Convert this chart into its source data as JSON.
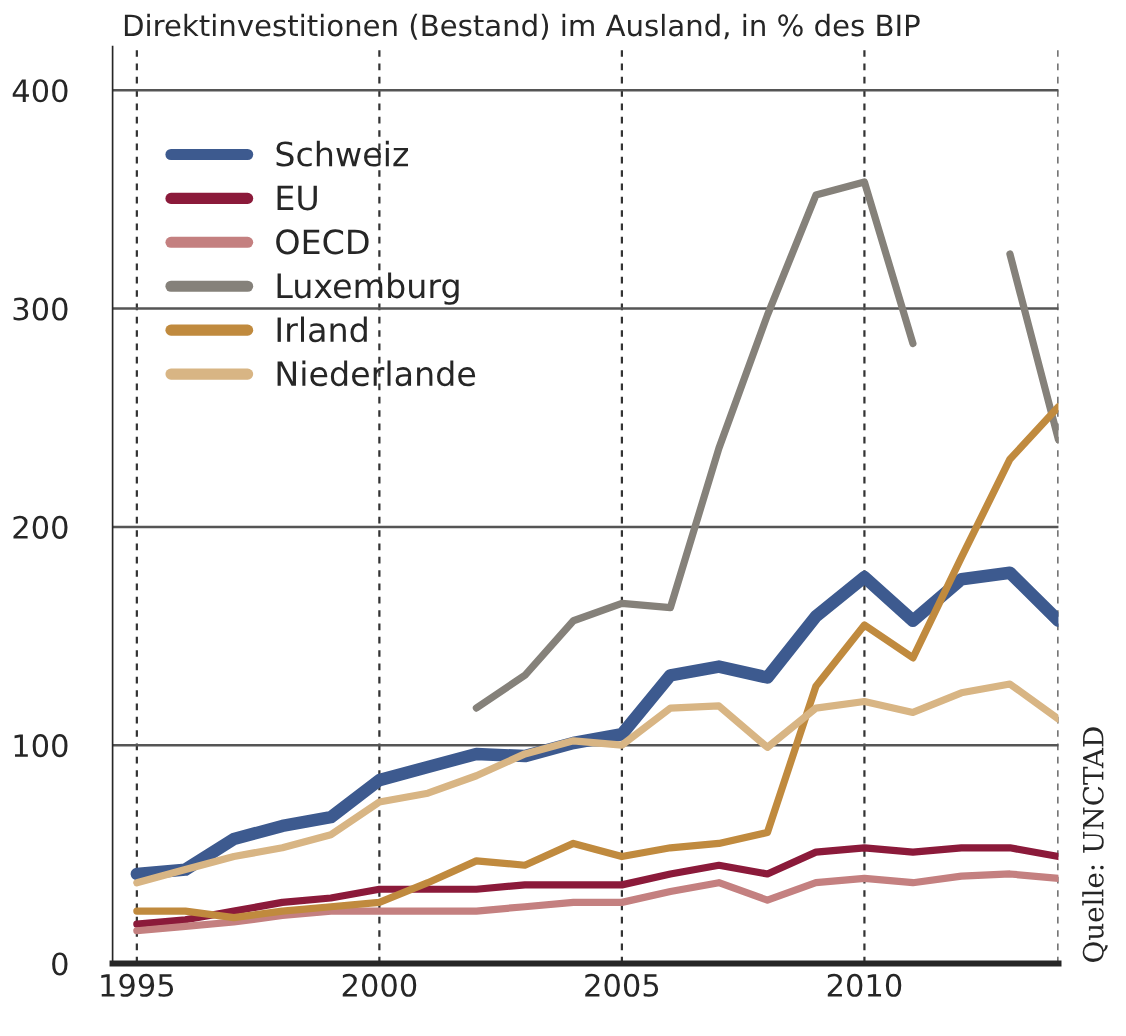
{
  "chart_data": {
    "type": "line",
    "title": "Direktinvestitionen (Bestand) im Ausland, in % des BIP",
    "x": [
      1995,
      1996,
      1997,
      1998,
      1999,
      2000,
      2001,
      2002,
      2003,
      2004,
      2005,
      2006,
      2007,
      2008,
      2009,
      2010,
      2011,
      2012,
      2013,
      2014
    ],
    "series": [
      {
        "name": "Schweiz",
        "color": "#3d5a8f",
        "values": [
          41,
          43,
          57,
          63,
          67,
          84,
          90,
          96,
          95,
          101,
          105,
          132,
          136,
          131,
          159,
          177,
          157,
          176,
          179,
          157
        ]
      },
      {
        "name": "EU",
        "color": "#8b1a3a",
        "values": [
          18,
          20,
          24,
          28,
          30,
          34,
          34,
          34,
          36,
          36,
          36,
          41,
          45,
          41,
          51,
          53,
          51,
          53,
          53,
          49
        ]
      },
      {
        "name": "OECD",
        "color": "#c48080",
        "values": [
          15,
          17,
          19,
          22,
          24,
          24,
          24,
          24,
          26,
          28,
          28,
          33,
          37,
          29,
          37,
          39,
          37,
          40,
          41,
          39
        ]
      },
      {
        "name": "Luxemburg",
        "color": "#85817a",
        "values": [
          null,
          null,
          null,
          null,
          null,
          null,
          null,
          117,
          132,
          157,
          165,
          163,
          236,
          297,
          352,
          358,
          284,
          null,
          325,
          240
        ]
      },
      {
        "name": "Irland",
        "color": "#c08a3e",
        "values": [
          24,
          24,
          21,
          24,
          26,
          28,
          37,
          47,
          45,
          55,
          49,
          53,
          55,
          60,
          127,
          155,
          140,
          186,
          231,
          255
        ]
      },
      {
        "name": "Niederlande",
        "color": "#d8b584",
        "values": [
          37,
          43,
          49,
          53,
          59,
          74,
          78,
          86,
          96,
          102,
          100,
          117,
          118,
          99,
          117,
          120,
          115,
          124,
          128,
          112
        ]
      }
    ],
    "xlim": [
      1994.5,
      2014
    ],
    "ylim": [
      0,
      420
    ],
    "xticks": [
      1995,
      2000,
      2005,
      2010,
      {
        "value": 2014,
        "label": null
      }
    ],
    "yticks": [
      0,
      100,
      200,
      300,
      400
    ],
    "grid": true,
    "legend": "top left",
    "annotations": [
      "Quelle: UNCTAD"
    ]
  }
}
